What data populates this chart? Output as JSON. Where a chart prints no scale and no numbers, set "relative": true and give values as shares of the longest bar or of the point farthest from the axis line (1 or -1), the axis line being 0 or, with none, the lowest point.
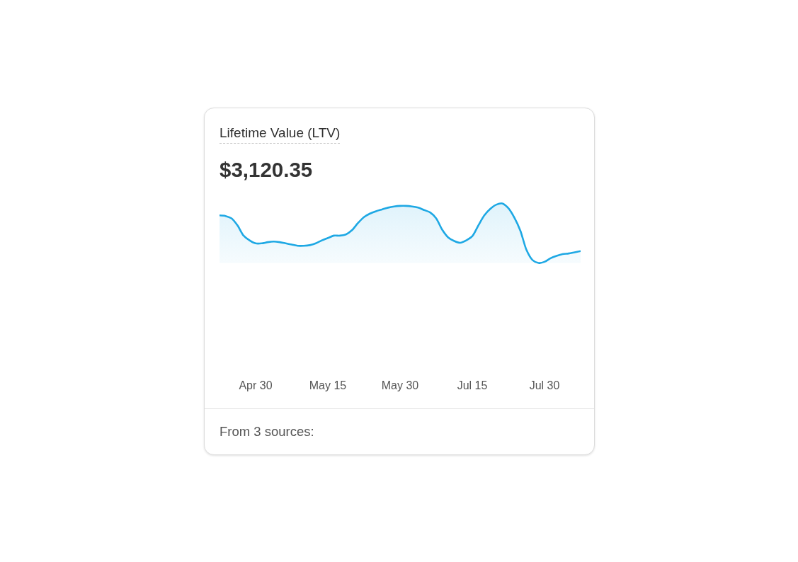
{
  "chart_data": {
    "type": "area",
    "title": "Lifetime Value (LTV)",
    "subtitle": "$3,120.35",
    "annotations": [
      "From 3 sources:"
    ],
    "relative": true,
    "categories": [
      null,
      null,
      null,
      null,
      null,
      null,
      "Apr 30",
      null,
      null,
      null,
      null,
      null,
      null,
      null,
      null,
      null,
      null,
      null,
      "May 15",
      null,
      null,
      null,
      null,
      null,
      null,
      null,
      null,
      null,
      null,
      null,
      "May 30",
      null,
      null,
      null,
      null,
      null,
      null,
      null,
      null,
      null,
      null,
      null,
      "Jul 15",
      null,
      null,
      null,
      null,
      null,
      null,
      null,
      null,
      null,
      null,
      null,
      "Jul 30",
      null,
      null,
      null,
      null,
      null,
      null
    ],
    "values": [
      0.8,
      0.79,
      0.75,
      0.63,
      0.46,
      0.38,
      0.33,
      0.33,
      0.35,
      0.36,
      0.35,
      0.33,
      0.31,
      0.29,
      0.29,
      0.3,
      0.33,
      0.38,
      0.42,
      0.46,
      0.46,
      0.48,
      0.55,
      0.67,
      0.77,
      0.83,
      0.87,
      0.9,
      0.93,
      0.95,
      0.96,
      0.96,
      0.95,
      0.93,
      0.89,
      0.85,
      0.75,
      0.56,
      0.43,
      0.37,
      0.34,
      0.38,
      0.45,
      0.63,
      0.8,
      0.91,
      0.98,
      1,
      0.92,
      0.76,
      0.54,
      0.22,
      0.05,
      0,
      0.02,
      0.08,
      0.12,
      0.15,
      0.16,
      0.18,
      0.2
    ],
    "color": "#1ea8e4"
  }
}
